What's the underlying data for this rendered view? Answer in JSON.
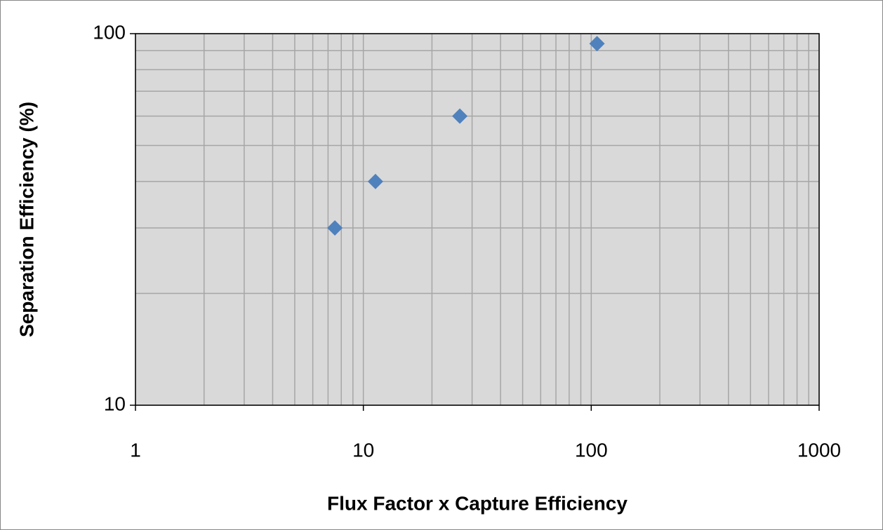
{
  "chart_data": {
    "type": "scatter",
    "x_label": "Flux Factor x Capture Efficiency",
    "y_label": "Separation Efficiency (%)",
    "x": [
      7.5,
      11.3,
      26.5,
      106
    ],
    "series": [
      {
        "color": "#4f81bd",
        "values": [
          30,
          40,
          60,
          94
        ]
      }
    ],
    "xlim": [
      1,
      1000
    ],
    "xticks": [
      1,
      10,
      100,
      1000
    ],
    "ylim": [
      10,
      100
    ],
    "yticks": [
      10,
      100
    ],
    "xlog": true,
    "ylog": true,
    "grid": true
  }
}
